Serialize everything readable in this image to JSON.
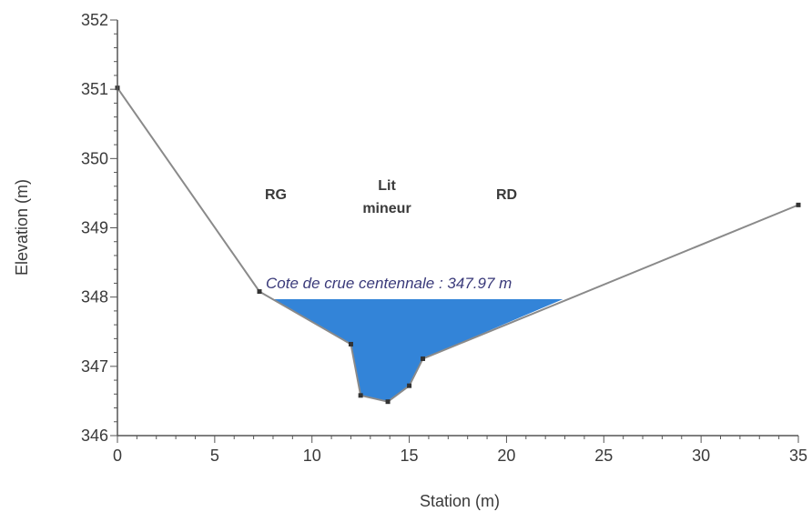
{
  "chart_data": {
    "type": "area",
    "xlabel": "Station (m)",
    "ylabel": "Elevation (m)",
    "xlim": [
      0,
      35
    ],
    "ylim": [
      346,
      352
    ],
    "xticks": [
      0,
      5,
      10,
      15,
      20,
      25,
      30,
      35
    ],
    "yticks": [
      346,
      347,
      348,
      349,
      350,
      351,
      352
    ],
    "grid": false,
    "profile": {
      "x": [
        0,
        7.3,
        12.0,
        12.5,
        13.9,
        15.0,
        15.7,
        35.0
      ],
      "y": [
        351.02,
        348.08,
        347.32,
        346.58,
        346.49,
        346.72,
        347.11,
        349.33
      ]
    },
    "water_level": 347.97,
    "water_extent": [
      8.0,
      22.9
    ],
    "annotations": {
      "water_level_label": "Cote de crue centennale : 347.97 m",
      "left_bank": "RG",
      "main_channel_line1": "Lit",
      "main_channel_line2": "mineur",
      "right_bank": "RD"
    },
    "colors": {
      "water": "#3384d8",
      "profile_line": "#8a8a8a",
      "axis": "#555555",
      "annotation_text": "#3a3a7a"
    }
  }
}
